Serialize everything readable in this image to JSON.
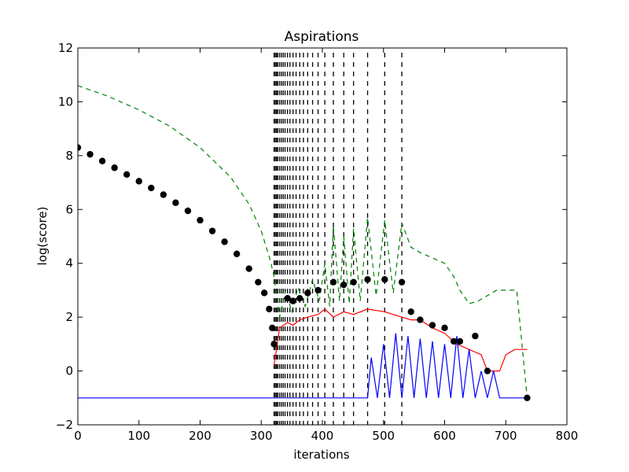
{
  "chart_data": {
    "type": "line",
    "title": "Aspirations",
    "xlabel": "iterations",
    "ylabel": "log(score)",
    "xlim": [
      0,
      800
    ],
    "ylim": [
      -2,
      12
    ],
    "x_ticks": [
      0,
      100,
      200,
      300,
      400,
      500,
      600,
      700,
      800
    ],
    "y_ticks": [
      -2,
      0,
      2,
      4,
      6,
      8,
      10,
      12
    ],
    "x_tick_labels": [
      "0",
      "100",
      "200",
      "300",
      "400",
      "500",
      "600",
      "700",
      "800"
    ],
    "y_tick_labels": [
      "−2",
      "0",
      "2",
      "4",
      "6",
      "8",
      "10",
      "12"
    ],
    "grid": false,
    "legend": "none",
    "restart_iterations": [
      321,
      323,
      325,
      327,
      330,
      333,
      336,
      339,
      343,
      347,
      352,
      357,
      363,
      369,
      376,
      384,
      393,
      404,
      418,
      435,
      451,
      474,
      502,
      530
    ],
    "series": [
      {
        "color": "#000000",
        "style": "markers",
        "points": [
          [
            0,
            8.3
          ],
          [
            20,
            8.05
          ],
          [
            40,
            7.8
          ],
          [
            60,
            7.55
          ],
          [
            80,
            7.3
          ],
          [
            100,
            7.05
          ],
          [
            120,
            6.8
          ],
          [
            140,
            6.55
          ],
          [
            160,
            6.25
          ],
          [
            180,
            5.95
          ],
          [
            200,
            5.6
          ],
          [
            220,
            5.2
          ],
          [
            240,
            4.8
          ],
          [
            260,
            4.35
          ],
          [
            280,
            3.8
          ],
          [
            295,
            3.3
          ],
          [
            305,
            2.9
          ],
          [
            313,
            2.3
          ],
          [
            318,
            1.6
          ],
          [
            321,
            1.0
          ],
          [
            343,
            2.7
          ],
          [
            352,
            2.6
          ],
          [
            363,
            2.7
          ],
          [
            376,
            2.9
          ],
          [
            393,
            3.0
          ],
          [
            418,
            3.3
          ],
          [
            435,
            3.2
          ],
          [
            451,
            3.3
          ],
          [
            474,
            3.4
          ],
          [
            502,
            3.4
          ],
          [
            530,
            3.3
          ],
          [
            545,
            2.2
          ],
          [
            560,
            1.9
          ],
          [
            580,
            1.7
          ],
          [
            600,
            1.6
          ],
          [
            615,
            1.1
          ],
          [
            625,
            1.1
          ],
          [
            650,
            1.3
          ],
          [
            670,
            0.0
          ],
          [
            735,
            -1.0
          ]
        ]
      },
      {
        "color": "#008000",
        "style": "dashed",
        "points": [
          [
            0,
            10.6
          ],
          [
            50,
            10.2
          ],
          [
            100,
            9.7
          ],
          [
            150,
            9.1
          ],
          [
            200,
            8.3
          ],
          [
            250,
            7.2
          ],
          [
            280,
            6.2
          ],
          [
            300,
            5.2
          ],
          [
            315,
            4.1
          ],
          [
            321,
            3.5
          ],
          [
            330,
            2.0
          ],
          [
            340,
            3.0
          ],
          [
            350,
            2.2
          ],
          [
            360,
            3.1
          ],
          [
            372,
            2.4
          ],
          [
            384,
            3.4
          ],
          [
            395,
            2.6
          ],
          [
            404,
            4.0
          ],
          [
            412,
            2.4
          ],
          [
            418,
            5.4
          ],
          [
            428,
            2.6
          ],
          [
            435,
            5.0
          ],
          [
            444,
            2.5
          ],
          [
            451,
            5.3
          ],
          [
            462,
            2.6
          ],
          [
            474,
            5.7
          ],
          [
            488,
            2.8
          ],
          [
            502,
            5.6
          ],
          [
            516,
            2.9
          ],
          [
            530,
            5.5
          ],
          [
            545,
            4.6
          ],
          [
            560,
            4.4
          ],
          [
            580,
            4.2
          ],
          [
            600,
            4.0
          ],
          [
            615,
            3.5
          ],
          [
            625,
            3.0
          ],
          [
            640,
            2.5
          ],
          [
            655,
            2.6
          ],
          [
            670,
            2.8
          ],
          [
            685,
            3.0
          ],
          [
            700,
            3.0
          ],
          [
            718,
            3.0
          ],
          [
            735,
            -1.0
          ]
        ]
      },
      {
        "color": "#ff0000",
        "style": "solid",
        "points": [
          [
            321,
            0.2
          ],
          [
            330,
            1.6
          ],
          [
            343,
            1.8
          ],
          [
            352,
            1.7
          ],
          [
            363,
            1.9
          ],
          [
            376,
            2.0
          ],
          [
            393,
            2.1
          ],
          [
            404,
            2.3
          ],
          [
            418,
            2.0
          ],
          [
            435,
            2.2
          ],
          [
            451,
            2.1
          ],
          [
            474,
            2.3
          ],
          [
            502,
            2.2
          ],
          [
            530,
            2.0
          ],
          [
            545,
            1.9
          ],
          [
            560,
            1.9
          ],
          [
            580,
            1.6
          ],
          [
            600,
            1.4
          ],
          [
            620,
            1.0
          ],
          [
            640,
            0.8
          ],
          [
            660,
            0.6
          ],
          [
            670,
            0.0
          ],
          [
            690,
            0.0
          ],
          [
            700,
            0.6
          ],
          [
            715,
            0.8
          ],
          [
            735,
            0.8
          ]
        ]
      },
      {
        "color": "#0000ff",
        "style": "solid",
        "points": [
          [
            0,
            -1.0
          ],
          [
            50,
            -1.0
          ],
          [
            100,
            -1.0
          ],
          [
            150,
            -1.0
          ],
          [
            200,
            -1.0
          ],
          [
            250,
            -1.0
          ],
          [
            300,
            -1.0
          ],
          [
            321,
            -1.0
          ],
          [
            474,
            -1.0
          ],
          [
            480,
            0.5
          ],
          [
            490,
            -1.0
          ],
          [
            500,
            1.0
          ],
          [
            510,
            -1.0
          ],
          [
            520,
            1.4
          ],
          [
            530,
            -1.0
          ],
          [
            540,
            1.3
          ],
          [
            550,
            -1.0
          ],
          [
            560,
            1.2
          ],
          [
            570,
            -1.0
          ],
          [
            580,
            1.1
          ],
          [
            590,
            -1.0
          ],
          [
            600,
            1.0
          ],
          [
            610,
            -1.0
          ],
          [
            620,
            1.3
          ],
          [
            630,
            -1.0
          ],
          [
            640,
            0.8
          ],
          [
            650,
            -1.0
          ],
          [
            660,
            0.0
          ],
          [
            670,
            -1.0
          ],
          [
            680,
            0.0
          ],
          [
            690,
            -1.0
          ],
          [
            735,
            -1.0
          ]
        ]
      }
    ]
  }
}
